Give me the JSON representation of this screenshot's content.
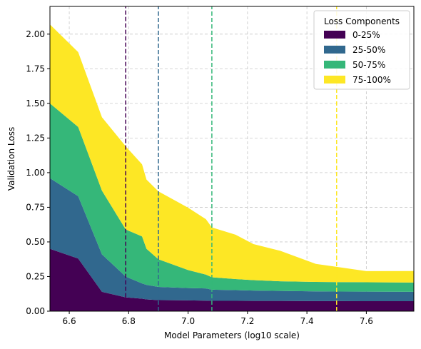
{
  "chart_data": {
    "type": "area",
    "stacked": true,
    "title": "",
    "xlabel": "Model Parameters (log10 scale)",
    "ylabel": "Validation Loss",
    "xlim": [
      6.535,
      7.76
    ],
    "ylim": [
      0,
      2.2
    ],
    "xticks": [
      6.6,
      6.8,
      7.0,
      7.2,
      7.4,
      7.6
    ],
    "xtick_labels": [
      "6.6",
      "6.8",
      "7.0",
      "7.2",
      "7.4",
      "7.6"
    ],
    "yticks": [
      0,
      0.25,
      0.5,
      0.75,
      1.0,
      1.25,
      1.5,
      1.75,
      2.0
    ],
    "ytick_labels": [
      "0.00",
      "0.25",
      "0.50",
      "0.75",
      "1.00",
      "1.25",
      "1.50",
      "1.75",
      "2.00"
    ],
    "grid": true,
    "legend": {
      "title": "Loss Components",
      "placement": "top-right"
    },
    "x": [
      6.535,
      6.63,
      6.71,
      6.79,
      6.845,
      6.86,
      6.9,
      7.0,
      7.06,
      7.08,
      7.16,
      7.22,
      7.31,
      7.43,
      7.5,
      7.6,
      7.76
    ],
    "series": [
      {
        "name": "0-25%",
        "color": "#440154",
        "values": [
          0.45,
          0.38,
          0.14,
          0.1,
          0.09,
          0.085,
          0.08,
          0.078,
          0.076,
          0.075,
          0.075,
          0.074,
          0.074,
          0.073,
          0.073,
          0.072,
          0.072
        ]
      },
      {
        "name": "25-50%",
        "color": "#31688e",
        "values": [
          0.51,
          0.45,
          0.27,
          0.15,
          0.11,
          0.105,
          0.095,
          0.089,
          0.088,
          0.08,
          0.077,
          0.075,
          0.072,
          0.07,
          0.069,
          0.069,
          0.068
        ]
      },
      {
        "name": "50-75%",
        "color": "#35b779",
        "values": [
          0.54,
          0.5,
          0.46,
          0.34,
          0.34,
          0.26,
          0.2,
          0.13,
          0.1,
          0.09,
          0.08,
          0.075,
          0.07,
          0.068,
          0.068,
          0.068,
          0.067
        ]
      },
      {
        "name": "75-100%",
        "color": "#fde725",
        "values": [
          0.57,
          0.54,
          0.53,
          0.6,
          0.52,
          0.5,
          0.49,
          0.45,
          0.4,
          0.36,
          0.32,
          0.26,
          0.22,
          0.13,
          0.11,
          0.08,
          0.083
        ]
      }
    ],
    "reference_lines": [
      {
        "x": 6.79,
        "color": "#440154",
        "style": "dashed",
        "y_from": 0.1
      },
      {
        "x": 6.9,
        "color": "#31688e",
        "style": "dashed",
        "y_from": 0.0
      },
      {
        "x": 7.08,
        "color": "#35b779",
        "style": "dashed",
        "y_from": 0.0
      },
      {
        "x": 7.5,
        "color": "#fde725",
        "style": "dashed",
        "y_from": 0.0
      }
    ]
  }
}
